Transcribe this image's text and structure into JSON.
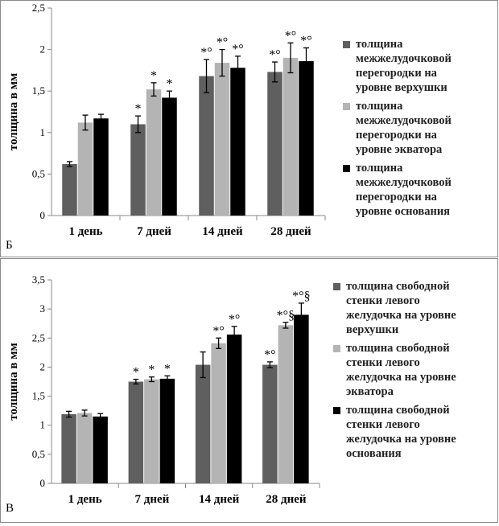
{
  "chart_data": [
    {
      "panel_label": "Б",
      "type": "bar",
      "ylabel": "толщина в мм",
      "ylim": [
        0,
        2.5
      ],
      "yticks": [
        "0",
        "0,5",
        "1",
        "1,5",
        "2",
        "2,5"
      ],
      "categories": [
        "1 день",
        "7 дней",
        "14 дней",
        "28 дней"
      ],
      "series": [
        {
          "name": "толщина межжелудочковой перегородки на уровне верхушки",
          "color": "#5f5f5f",
          "lines": [
            "толщина",
            "межжелудочковой",
            "перегородки на",
            "уровне верхушки"
          ],
          "values": [
            0.62,
            1.1,
            1.68,
            1.73
          ],
          "errors": [
            0.03,
            0.1,
            0.2,
            0.12
          ],
          "annotations": [
            "",
            "*",
            "*°",
            "*°"
          ]
        },
        {
          "name": "толщина межжелудочковой перегородки на уровне экватора",
          "color": "#b4b4b4",
          "lines": [
            "толщина",
            "межжелудочковой",
            "перегородки на",
            "уровне экватора"
          ],
          "values": [
            1.12,
            1.52,
            1.84,
            1.9
          ],
          "errors": [
            0.09,
            0.08,
            0.16,
            0.18
          ],
          "annotations": [
            "",
            "*",
            "*°",
            "*°"
          ]
        },
        {
          "name": "толщина межжелудочковой перегородки на уровне основания",
          "color": "#000000",
          "lines": [
            "толщина",
            "межжелудочковой",
            "перегородки на",
            "уровне основания"
          ],
          "values": [
            1.17,
            1.42,
            1.78,
            1.86
          ],
          "errors": [
            0.05,
            0.08,
            0.14,
            0.16
          ],
          "annotations": [
            "",
            "*",
            "*°",
            "*°"
          ]
        }
      ]
    },
    {
      "panel_label": "В",
      "type": "bar",
      "ylabel": "толщина в мм",
      "ylim": [
        0,
        3.5
      ],
      "yticks": [
        "0",
        "0,5",
        "1",
        "1,5",
        "2",
        "2,5",
        "3",
        "3,5"
      ],
      "categories": [
        "1 день",
        "7 дней",
        "14 дней",
        "28 дней"
      ],
      "series": [
        {
          "name": "толщина свободной стенки левого желудочка на уровне верхушки",
          "color": "#5f5f5f",
          "lines": [
            "толщина свободной",
            "стенки левого",
            "желудочка на уровне",
            "верхушки"
          ],
          "values": [
            1.19,
            1.75,
            2.04,
            2.04
          ],
          "errors": [
            0.05,
            0.04,
            0.22,
            0.05
          ],
          "annotations": [
            "",
            "*",
            "",
            "*°"
          ]
        },
        {
          "name": "толщина свободной стенки левого желудочка на уровне экватора",
          "color": "#b4b4b4",
          "lines": [
            "толщина свободной",
            "стенки левого",
            "желудочка на уровне",
            "экватора"
          ],
          "values": [
            1.21,
            1.79,
            2.41,
            2.72
          ],
          "errors": [
            0.05,
            0.04,
            0.09,
            0.05
          ],
          "annotations": [
            "",
            "*",
            "*°",
            "*°§"
          ]
        },
        {
          "name": "толщина свободной стенки левого желудочка на уровне основания",
          "color": "#000000",
          "lines": [
            "толщина свободной",
            "стенки левого",
            "желудочка на уровне",
            "основания"
          ],
          "values": [
            1.15,
            1.8,
            2.56,
            2.9
          ],
          "errors": [
            0.05,
            0.05,
            0.14,
            0.2
          ],
          "annotations": [
            "",
            "*",
            "*°",
            "*°§"
          ]
        }
      ]
    }
  ]
}
